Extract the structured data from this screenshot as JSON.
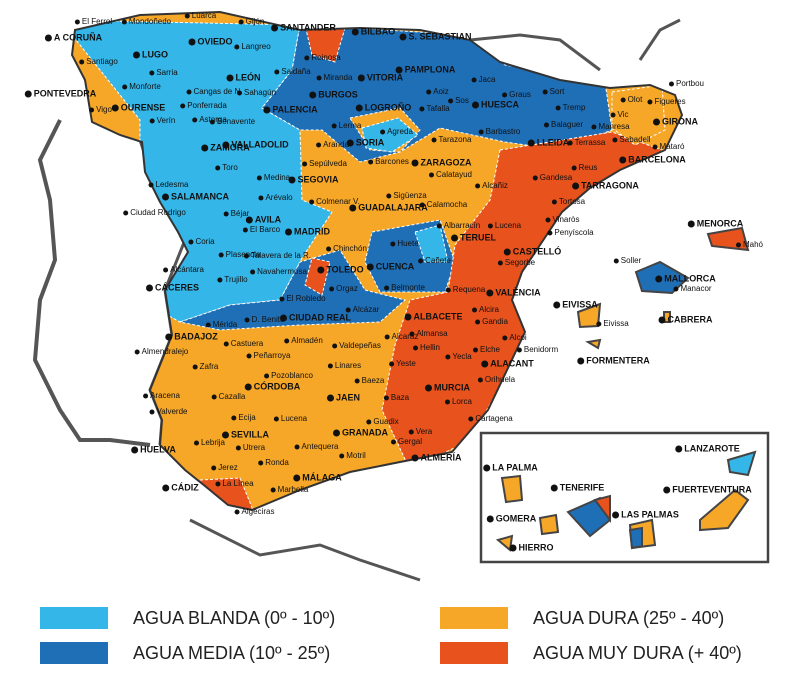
{
  "legend": [
    {
      "label": "AGUA BLANDA (0º - 10º)",
      "color": "#35b6e9"
    },
    {
      "label": "AGUA MEDIA (10º - 25º)",
      "color": "#1f6fb7"
    },
    {
      "label": "AGUA DURA (25º - 40º)",
      "color": "#f6a728"
    },
    {
      "label": "AGUA MUY DURA (+ 40º)",
      "color": "#e8521d"
    }
  ],
  "capitals": [
    "A CORUÑA",
    "LUGO",
    "OVIEDO",
    "SANTANDER",
    "BILBAO",
    "S. SEBASTIAN",
    "PONTEVEDRA",
    "OURENSE",
    "LEÓN",
    "PALENCIA",
    "BURGOS",
    "VITORIA",
    "PAMPLONA",
    "LOGROÑO",
    "HUESCA",
    "LLEIDA",
    "GIRONA",
    "BARCELONA",
    "TARRAGONA",
    "ZAMORA",
    "VALLADOLID",
    "SORIA",
    "ZARAGOZA",
    "SALAMANCA",
    "SEGOVIA",
    "GUADALAJARA",
    "AVILA",
    "MADRID",
    "TERUEL",
    "CASTELLÓ",
    "CUENCA",
    "TOLEDO",
    "CÁCERES",
    "VALÈNCIA",
    "CIUDAD REAL",
    "ALBACETE",
    "BADAJOZ",
    "CÓRDOBA",
    "JAEN",
    "ALACANT",
    "MURCIA",
    "SEVILLA",
    "GRANADA",
    "ALMERÍA",
    "HUELVA",
    "MÁLAGA",
    "CÁDIZ",
    "MENORCA",
    "MALLORCA",
    "EIVISSA",
    "CABRERA",
    "FORMENTERA",
    "LANZAROTE",
    "LA PALMA",
    "TENERIFE",
    "FUERTEVENTURA",
    "GOMERA",
    "LAS PALMAS",
    "HIERRO"
  ],
  "towns": [
    "El Ferrol",
    "Mondoñedo",
    "Luarca",
    "Gijón",
    "Santiago",
    "Sarria",
    "Monforte",
    "Vigo",
    "Verín",
    "Cangas de N.",
    "Ponferrada",
    "Astorga",
    "Langreo",
    "Saldaña",
    "Sahagún",
    "Benavente",
    "Reinosa",
    "Miranda",
    "Aoiz",
    "Tafalla",
    "Jaca",
    "Graus",
    "Sort",
    "Tremp",
    "Barbastro",
    "Balaguer",
    "Olot",
    "Figueres",
    "Portbou",
    "Vic",
    "Manresa",
    "Sabadell",
    "Terrassa",
    "Mataró",
    "Reus",
    "Lerma",
    "Agreda",
    "Tarazona",
    "Sos",
    "Barcones",
    "Calatayud",
    "Sepúlveda",
    "Aranda",
    "Toro",
    "Medina",
    "Ledesma",
    "Ciudad Rodrigo",
    "Béjar",
    "Arévalo",
    "Colmenar V.",
    "Sigüenza",
    "Calamocha",
    "Alcañiz",
    "Gandesa",
    "Tortosa",
    "Vinaròs",
    "Penyíscola",
    "Albarracín",
    "Lucena",
    "El Barco",
    "Coria",
    "Plasencia",
    "Talavera de la R.",
    "Huete",
    "Cañete",
    "Chinchón",
    "Segorbe",
    "Alcántara",
    "Trujillo",
    "Navahermosa",
    "Orgaz",
    "Belmonte",
    "Requena",
    "El Robledo",
    "Alcázar",
    "Alcira",
    "Gandia",
    "Mérida",
    "D. Benito",
    "Almadén",
    "Almendralejo",
    "Castuera",
    "Valdepeñas",
    "Alcaraz",
    "Almansa",
    "Hellin",
    "Elche",
    "Alcoi",
    "Benidorm",
    "Yecla",
    "Zafra",
    "Peñarroya",
    "Yeste",
    "Orihuela",
    "Linares",
    "Pozoblanco",
    "Baeza",
    "Aracena",
    "Cazalla",
    "Valverde",
    "Baza",
    "Lorca",
    "Cartagena",
    "Ecija",
    "Lucena",
    "Guadix",
    "Vera",
    "Gergal",
    "Lebrija",
    "Utrera",
    "Antequera",
    "Motril",
    "Jerez",
    "Ronda",
    "La Línea",
    "Marbella",
    "Algeciras",
    "Soller",
    "Mahó",
    "Manacor",
    "Eivissa"
  ]
}
